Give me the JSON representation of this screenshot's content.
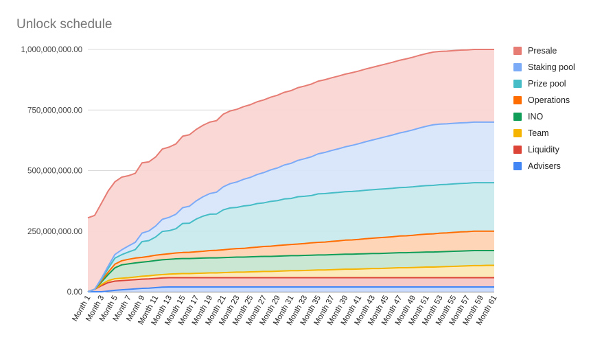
{
  "chart_data": {
    "type": "area",
    "title": "Unlock schedule",
    "xlabel": "",
    "ylabel": "",
    "stacked": true,
    "ylim": [
      0,
      1000000000
    ],
    "yticks": [
      "0.00",
      "250,000,000.00",
      "500,000,000.00",
      "750,000,000.00",
      "1,000,000,000.00"
    ],
    "ytick_values": [
      0,
      250000000,
      500000000,
      750000000,
      1000000000
    ],
    "grid": true,
    "legend_position": "right",
    "x_labels_shown": [
      "Month 1",
      "Month 3",
      "Month 5",
      "Month 7",
      "Month 9",
      "Month 11",
      "Month 13",
      "Month 15",
      "Month 17",
      "Month 19",
      "Month 21",
      "Month 23",
      "Month 25",
      "Month 27",
      "Month 29",
      "Month 31",
      "Month 33",
      "Month 35",
      "Month 37",
      "Month 39",
      "Month 41",
      "Month 43",
      "Month 45",
      "Month 47",
      "Month 49",
      "Month 51",
      "Month 53",
      "Month 55",
      "Month 57",
      "Month 59",
      "Month 61"
    ],
    "categories": [
      "Month 1",
      "Month 2",
      "Month 3",
      "Month 4",
      "Month 5",
      "Month 6",
      "Month 7",
      "Month 8",
      "Month 9",
      "Month 10",
      "Month 11",
      "Month 12",
      "Month 13",
      "Month 14",
      "Month 15",
      "Month 16",
      "Month 17",
      "Month 18",
      "Month 19",
      "Month 20",
      "Month 21",
      "Month 22",
      "Month 23",
      "Month 24",
      "Month 25",
      "Month 26",
      "Month 27",
      "Month 28",
      "Month 29",
      "Month 30",
      "Month 31",
      "Month 32",
      "Month 33",
      "Month 34",
      "Month 35",
      "Month 36",
      "Month 37",
      "Month 38",
      "Month 39",
      "Month 40",
      "Month 41",
      "Month 42",
      "Month 43",
      "Month 44",
      "Month 45",
      "Month 46",
      "Month 47",
      "Month 48",
      "Month 49",
      "Month 50",
      "Month 51",
      "Month 52",
      "Month 53",
      "Month 54",
      "Month 55",
      "Month 56",
      "Month 57",
      "Month 58",
      "Month 59",
      "Month 60",
      "Month 61"
    ],
    "series": [
      {
        "name": "Advisers",
        "color": "#4285f4",
        "fill": "#c5d7fb",
        "values": [
          0,
          0,
          0,
          3000000,
          6000000,
          8000000,
          10000000,
          12000000,
          14000000,
          15000000,
          17000000,
          19000000,
          20000000,
          20000000,
          20000000,
          20000000,
          20000000,
          20000000,
          20000000,
          20000000,
          20000000,
          20000000,
          20000000,
          20000000,
          20000000,
          20000000,
          20000000,
          20000000,
          20000000,
          20000000,
          20000000,
          20000000,
          20000000,
          20000000,
          20000000,
          20000000,
          20000000,
          20000000,
          20000000,
          20000000,
          20000000,
          20000000,
          20000000,
          20000000,
          20000000,
          20000000,
          20000000,
          20000000,
          20000000,
          20000000,
          20000000,
          20000000,
          20000000,
          20000000,
          20000000,
          20000000,
          20000000,
          20000000,
          20000000,
          20000000,
          20000000
        ]
      },
      {
        "name": "Liquidity",
        "color": "#db4437",
        "fill": "#f5c5c1",
        "values": [
          0,
          10000000,
          25000000,
          35000000,
          38000000,
          38000000,
          38000000,
          38000000,
          38000000,
          38000000,
          38000000,
          38000000,
          38000000,
          38000000,
          38000000,
          38000000,
          38000000,
          38000000,
          38000000,
          38000000,
          38000000,
          38000000,
          38000000,
          38000000,
          38000000,
          38000000,
          38000000,
          38000000,
          38000000,
          38000000,
          38000000,
          38000000,
          38000000,
          38000000,
          38000000,
          38000000,
          38000000,
          38000000,
          38000000,
          38000000,
          38000000,
          38000000,
          38000000,
          38000000,
          38000000,
          38000000,
          38000000,
          38000000,
          38000000,
          38000000,
          38000000,
          38000000,
          38000000,
          38000000,
          38000000,
          38000000,
          38000000,
          38000000,
          38000000,
          38000000,
          38000000
        ]
      },
      {
        "name": "Team",
        "color": "#f4b400",
        "fill": "#fce8b2",
        "values": [
          0,
          0,
          5000000,
          8000000,
          10000000,
          10000000,
          10000000,
          11000000,
          12000000,
          13000000,
          14000000,
          14000000,
          15000000,
          16000000,
          17000000,
          17000000,
          18000000,
          19000000,
          20000000,
          20000000,
          21000000,
          22000000,
          23000000,
          23000000,
          24000000,
          25000000,
          26000000,
          26000000,
          27000000,
          28000000,
          29000000,
          29000000,
          30000000,
          31000000,
          32000000,
          32000000,
          33000000,
          34000000,
          35000000,
          35000000,
          36000000,
          37000000,
          38000000,
          38000000,
          39000000,
          40000000,
          41000000,
          41000000,
          42000000,
          43000000,
          44000000,
          44000000,
          45000000,
          46000000,
          47000000,
          48000000,
          49000000,
          50000000,
          50000000,
          51000000,
          51000000
        ]
      },
      {
        "name": "INO",
        "color": "#0f9d58",
        "fill": "#c4e4cf",
        "values": [
          0,
          0,
          10000000,
          25000000,
          45000000,
          55000000,
          57000000,
          58000000,
          58000000,
          59000000,
          60000000,
          61000000,
          61000000,
          62000000,
          62000000,
          62000000,
          62000000,
          62000000,
          62000000,
          62000000,
          62000000,
          62000000,
          62000000,
          62000000,
          62000000,
          62000000,
          62000000,
          62000000,
          62000000,
          62000000,
          62000000,
          62000000,
          62000000,
          62000000,
          62000000,
          62000000,
          62000000,
          62000000,
          62000000,
          62000000,
          62000000,
          62000000,
          62000000,
          62000000,
          62000000,
          62000000,
          62000000,
          62000000,
          62000000,
          62000000,
          62000000,
          62000000,
          62000000,
          62000000,
          62000000,
          62000000,
          62000000,
          62000000,
          62000000,
          61000000,
          61000000
        ]
      },
      {
        "name": "Operations",
        "color": "#ff6d00",
        "fill": "#ffd0b0",
        "values": [
          0,
          0,
          5000000,
          10000000,
          15000000,
          17000000,
          19000000,
          20000000,
          20000000,
          21000000,
          22000000,
          22000000,
          23000000,
          24000000,
          25000000,
          26000000,
          27000000,
          28000000,
          30000000,
          31000000,
          32000000,
          34000000,
          35000000,
          36000000,
          38000000,
          39000000,
          41000000,
          42000000,
          44000000,
          45000000,
          46000000,
          48000000,
          49000000,
          51000000,
          52000000,
          53000000,
          55000000,
          56000000,
          58000000,
          59000000,
          60000000,
          62000000,
          63000000,
          65000000,
          66000000,
          67000000,
          69000000,
          70000000,
          71000000,
          73000000,
          74000000,
          75000000,
          77000000,
          77000000,
          78000000,
          79000000,
          79000000,
          80000000,
          80000000,
          80000000,
          80000000
        ]
      },
      {
        "name": "Prize pool",
        "color": "#46bdc6",
        "fill": "#c6e9ec",
        "values": [
          0,
          0,
          5000000,
          15000000,
          25000000,
          25000000,
          30000000,
          35000000,
          65000000,
          65000000,
          75000000,
          95000000,
          95000000,
          100000000,
          120000000,
          120000000,
          135000000,
          145000000,
          150000000,
          150000000,
          165000000,
          170000000,
          170000000,
          175000000,
          175000000,
          180000000,
          180000000,
          185000000,
          185000000,
          190000000,
          190000000,
          195000000,
          195000000,
          195000000,
          200000000,
          200000000,
          200000000,
          200000000,
          200000000,
          200000000,
          200000000,
          200000000,
          200000000,
          200000000,
          200000000,
          200000000,
          200000000,
          200000000,
          200000000,
          200000000,
          200000000,
          200000000,
          200000000,
          200000000,
          200000000,
          200000000,
          200000000,
          200000000,
          200000000,
          200000000,
          200000000
        ]
      },
      {
        "name": "Staking pool",
        "color": "#7baaf7",
        "fill": "#d6e4fb",
        "values": [
          0,
          0,
          5000000,
          10000000,
          15000000,
          20000000,
          25000000,
          30000000,
          35000000,
          40000000,
          45000000,
          50000000,
          55000000,
          60000000,
          65000000,
          70000000,
          75000000,
          80000000,
          85000000,
          90000000,
          95000000,
          100000000,
          105000000,
          110000000,
          115000000,
          120000000,
          125000000,
          130000000,
          135000000,
          140000000,
          145000000,
          150000000,
          155000000,
          160000000,
          165000000,
          170000000,
          175000000,
          180000000,
          185000000,
          190000000,
          195000000,
          200000000,
          205000000,
          210000000,
          215000000,
          220000000,
          225000000,
          230000000,
          235000000,
          240000000,
          245000000,
          250000000,
          250000000,
          250000000,
          250000000,
          250000000,
          250000000,
          250000000,
          250000000,
          250000000,
          250000000
        ]
      },
      {
        "name": "Presale",
        "color": "#e67c73",
        "fill": "#f9d4d2",
        "values": [
          305000000,
          305000000,
          310000000,
          310000000,
          300000000,
          300000000,
          290000000,
          285000000,
          290000000,
          285000000,
          285000000,
          290000000,
          290000000,
          290000000,
          295000000,
          295000000,
          295000000,
          295000000,
          295000000,
          295000000,
          300000000,
          300000000,
          300000000,
          300000000,
          300000000,
          300000000,
          300000000,
          300000000,
          300000000,
          300000000,
          300000000,
          300000000,
          300000000,
          300000000,
          300000000,
          300000000,
          300000000,
          300000000,
          300000000,
          300000000,
          300000000,
          300000000,
          300000000,
          300000000,
          300000000,
          300000000,
          300000000,
          300000000,
          300000000,
          300000000,
          300000000,
          300000000,
          300000000,
          300000000,
          300000000,
          300000000,
          300000000,
          300000000,
          300000000,
          300000000,
          300000000
        ]
      }
    ]
  }
}
